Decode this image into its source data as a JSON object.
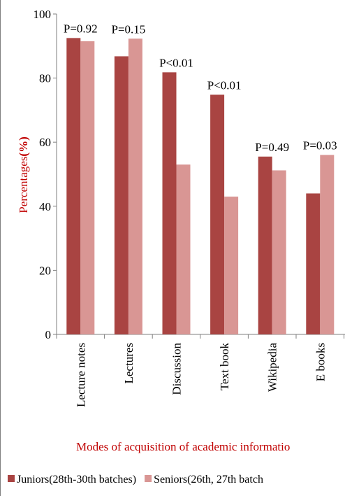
{
  "chart_data": {
    "type": "bar",
    "title": "",
    "xlabel": "Modes of acquisition of academic informatio",
    "ylabel_main": "Percentages",
    "ylabel_unit": "(%)",
    "ylim": [
      0,
      100
    ],
    "yticks": [
      0,
      20,
      40,
      60,
      80,
      100
    ],
    "grid": false,
    "legend_position": "bottom",
    "categories": [
      "Lecture notes",
      "Lectures",
      "Discussion",
      "Text book",
      "Wikipedia",
      "E books"
    ],
    "series": [
      {
        "name": "Juniors(28th-30th batches)",
        "color": "#a94442",
        "values": [
          92.5,
          86.8,
          81.8,
          74.8,
          55.5,
          44.0
        ]
      },
      {
        "name": "Seniors(26th, 27th batch",
        "color": "#d99694",
        "values": [
          91.5,
          92.3,
          53.0,
          43.0,
          51.2,
          56.0
        ]
      }
    ],
    "annotations": [
      "P=0.92",
      "P=0.15",
      "P<0.01",
      "P<0.01",
      "P=0.49",
      "P=0.03"
    ]
  }
}
